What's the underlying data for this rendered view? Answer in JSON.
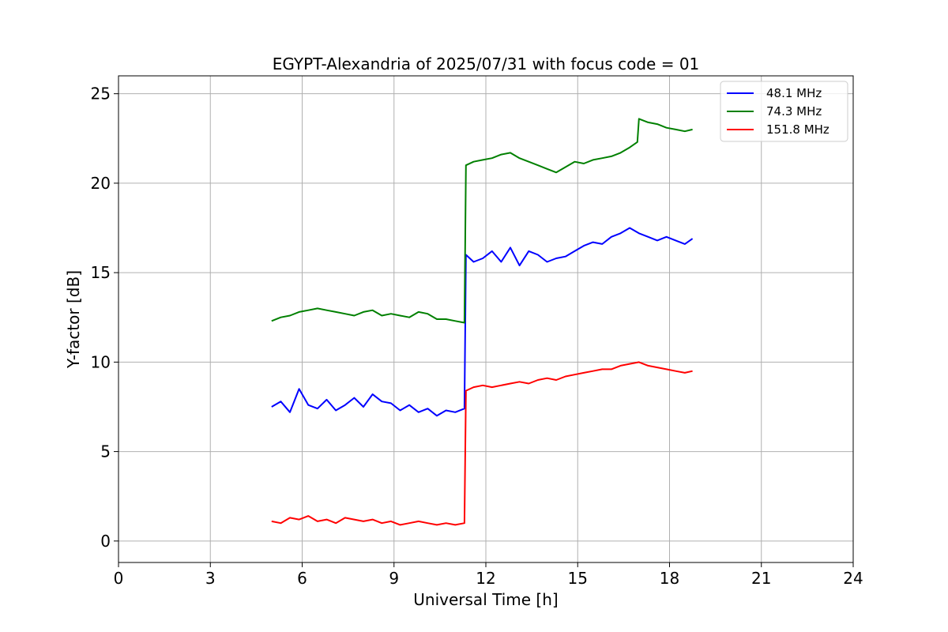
{
  "chart_data": {
    "type": "line",
    "title": "EGYPT-Alexandria of 2025/07/31 with focus code = 01",
    "xlabel": "Universal Time [h]",
    "ylabel": "Y-factor [dB]",
    "xlim": [
      0,
      24
    ],
    "ylim": [
      -1.2,
      26
    ],
    "xticks": [
      0,
      3,
      6,
      9,
      12,
      15,
      18,
      21,
      24
    ],
    "yticks": [
      0,
      5,
      10,
      15,
      20,
      25
    ],
    "grid": true,
    "legend_position": "top-right",
    "series": [
      {
        "name": "  48.1 MHz",
        "color": "#0000ff",
        "x": [
          5.0,
          5.3,
          5.6,
          5.9,
          6.2,
          6.5,
          6.8,
          7.1,
          7.4,
          7.7,
          8.0,
          8.3,
          8.6,
          8.9,
          9.2,
          9.5,
          9.8,
          10.1,
          10.4,
          10.7,
          11.0,
          11.3,
          11.35,
          11.6,
          11.9,
          12.2,
          12.5,
          12.8,
          13.1,
          13.4,
          13.7,
          14.0,
          14.3,
          14.6,
          14.9,
          15.2,
          15.5,
          15.8,
          16.1,
          16.4,
          16.7,
          17.0,
          17.3,
          17.6,
          17.9,
          18.2,
          18.5,
          18.75
        ],
        "y": [
          7.5,
          7.8,
          7.2,
          8.5,
          7.6,
          7.4,
          7.9,
          7.3,
          7.6,
          8.0,
          7.5,
          8.2,
          7.8,
          7.7,
          7.3,
          7.6,
          7.2,
          7.4,
          7.0,
          7.3,
          7.2,
          7.4,
          16.0,
          15.6,
          15.8,
          16.2,
          15.6,
          16.4,
          15.4,
          16.2,
          16.0,
          15.6,
          15.8,
          15.9,
          16.2,
          16.5,
          16.7,
          16.6,
          17.0,
          17.2,
          17.5,
          17.2,
          17.0,
          16.8,
          17.0,
          16.8,
          16.6,
          16.9
        ]
      },
      {
        "name": "  74.3 MHz",
        "color": "#008000",
        "x": [
          5.0,
          5.3,
          5.6,
          5.9,
          6.2,
          6.5,
          6.8,
          7.1,
          7.4,
          7.7,
          8.0,
          8.3,
          8.6,
          8.9,
          9.2,
          9.5,
          9.8,
          10.1,
          10.4,
          10.7,
          11.0,
          11.3,
          11.35,
          11.6,
          11.9,
          12.2,
          12.5,
          12.8,
          13.1,
          13.4,
          13.7,
          14.0,
          14.3,
          14.6,
          14.9,
          15.2,
          15.5,
          15.8,
          16.1,
          16.4,
          16.7,
          16.95,
          17.0,
          17.3,
          17.6,
          17.9,
          18.2,
          18.5,
          18.75
        ],
        "y": [
          12.3,
          12.5,
          12.6,
          12.8,
          12.9,
          13.0,
          12.9,
          12.8,
          12.7,
          12.6,
          12.8,
          12.9,
          12.6,
          12.7,
          12.6,
          12.5,
          12.8,
          12.7,
          12.4,
          12.4,
          12.3,
          12.2,
          21.0,
          21.2,
          21.3,
          21.4,
          21.6,
          21.7,
          21.4,
          21.2,
          21.0,
          20.8,
          20.6,
          20.9,
          21.2,
          21.1,
          21.3,
          21.4,
          21.5,
          21.7,
          22.0,
          22.3,
          23.6,
          23.4,
          23.3,
          23.1,
          23.0,
          22.9,
          23.0
        ]
      },
      {
        "name": " 151.8 MHz",
        "color": "#ff0000",
        "x": [
          5.0,
          5.3,
          5.6,
          5.9,
          6.2,
          6.5,
          6.8,
          7.1,
          7.4,
          7.7,
          8.0,
          8.3,
          8.6,
          8.9,
          9.2,
          9.5,
          9.8,
          10.1,
          10.4,
          10.7,
          11.0,
          11.3,
          11.35,
          11.6,
          11.9,
          12.2,
          12.5,
          12.8,
          13.1,
          13.4,
          13.7,
          14.0,
          14.3,
          14.6,
          14.9,
          15.2,
          15.5,
          15.8,
          16.1,
          16.4,
          16.7,
          17.0,
          17.3,
          17.6,
          17.9,
          18.2,
          18.5,
          18.75
        ],
        "y": [
          1.1,
          1.0,
          1.3,
          1.2,
          1.4,
          1.1,
          1.2,
          1.0,
          1.3,
          1.2,
          1.1,
          1.2,
          1.0,
          1.1,
          0.9,
          1.0,
          1.1,
          1.0,
          0.9,
          1.0,
          0.9,
          1.0,
          8.4,
          8.6,
          8.7,
          8.6,
          8.7,
          8.8,
          8.9,
          8.8,
          9.0,
          9.1,
          9.0,
          9.2,
          9.3,
          9.4,
          9.5,
          9.6,
          9.6,
          9.8,
          9.9,
          10.0,
          9.8,
          9.7,
          9.6,
          9.5,
          9.4,
          9.5
        ]
      }
    ]
  }
}
